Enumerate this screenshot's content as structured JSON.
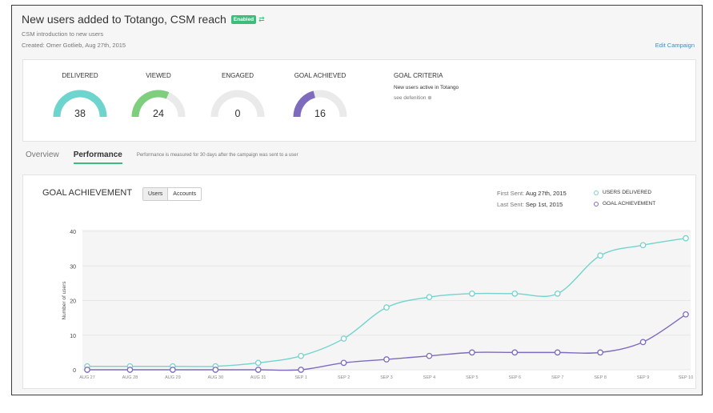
{
  "campaign": {
    "title": "New users added to Totango, CSM reach",
    "status": "Enabled",
    "description": "CSM introduction to new users",
    "created": "Created: Omer Gotlieb, Aug 27th, 2015",
    "edit_label": "Edit Campaign"
  },
  "stats": [
    {
      "label": "DELIVERED",
      "value": "38",
      "fill": 1.0,
      "color": "#6dd5cd"
    },
    {
      "label": "VIEWED",
      "value": "24",
      "fill": 0.63,
      "color": "#7dcf7d"
    },
    {
      "label": "ENGAGED",
      "value": "0",
      "fill": 0.0,
      "color": "#7dcf7d"
    },
    {
      "label": "GOAL ACHIEVED",
      "value": "16",
      "fill": 0.42,
      "color": "#7f6bbd"
    }
  ],
  "goal_criteria": {
    "title": "GOAL CRITERIA",
    "text": "New users active in Totango",
    "link": "see defenition"
  },
  "tabs": {
    "overview": "Overview",
    "performance": "Performance",
    "note": "Performance is measured for 30 days after the campaign was sent to a user"
  },
  "chart_panel": {
    "title": "GOAL ACHIEVEMENT",
    "toggle_users": "Users",
    "toggle_accounts": "Accounts",
    "first_sent_label": "First Sent:",
    "first_sent_value": "Aug 27th, 2015",
    "last_sent_label": "Last Sent:",
    "last_sent_value": "Sep 1st, 2015"
  },
  "chart_data": {
    "type": "line",
    "x": [
      "AUG 27",
      "AUG 28",
      "AUG 29",
      "AUG 30",
      "AUG 31",
      "SEP 1",
      "SEP 2",
      "SEP 3",
      "SEP 4",
      "SEP 5",
      "SEP 6",
      "SEP 7",
      "SEP 8",
      "SEP 9",
      "SEP 10"
    ],
    "series": [
      {
        "name": "USERS DELIVERED",
        "color": "#74d3cc",
        "values": [
          1,
          1,
          1,
          1,
          2,
          4,
          9,
          18,
          21,
          22,
          22,
          22,
          33,
          36,
          38
        ]
      },
      {
        "name": "GOAL ACHIEVEMENT",
        "color": "#7f6bbd",
        "values": [
          0,
          0,
          0,
          0,
          0,
          0,
          2,
          3,
          4,
          5,
          5,
          5,
          5,
          8,
          16
        ]
      }
    ],
    "ylabel": "Number of users",
    "ylim": [
      0,
      40
    ],
    "yticks": [
      0,
      10,
      20,
      30,
      40
    ],
    "grid": true,
    "legend": "top-right"
  }
}
